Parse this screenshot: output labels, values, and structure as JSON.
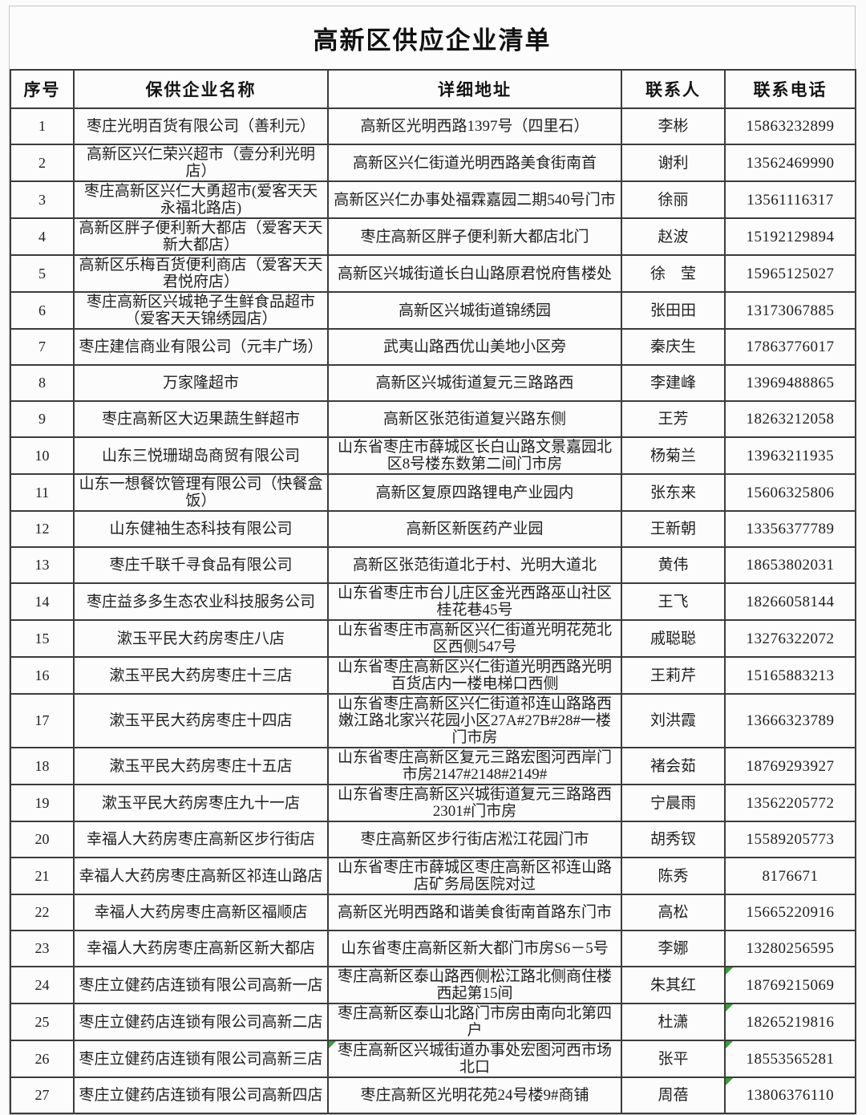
{
  "title": "高新区供应企业清单",
  "colors": {
    "marker_green": "#3a9d3a",
    "border_dark": "#3c3c3c"
  },
  "table": {
    "columns": [
      "序号",
      "保供企业名称",
      "详细地址",
      "联系人",
      "联系电话"
    ],
    "rows": [
      {
        "no": "1",
        "name": "枣庄光明百货有限公司（善利元）",
        "address": "高新区光明西路1397号（四里石）",
        "contact": "李彬",
        "phone": "15863232899"
      },
      {
        "no": "2",
        "name": "高新区兴仁荣兴超市（壹分利光明店）",
        "address": "高新区兴仁街道光明西路美食街南首",
        "contact": "谢利",
        "phone": "13562469990"
      },
      {
        "no": "3",
        "name": "枣庄高新区兴仁大勇超市(爱客天天永福北路店)",
        "address": "高新区兴仁办事处福霖嘉园二期540号门市",
        "contact": "徐丽",
        "phone": "13561116317"
      },
      {
        "no": "4",
        "name": "高新区胖子便利新大都店（爱客天天新大都店）",
        "address": "枣庄高新区胖子便利新大都店北门",
        "contact": "赵波",
        "phone": "15192129894"
      },
      {
        "no": "5",
        "name": "高新区乐梅百货便利商店（爱客天天君悦府店）",
        "address": "高新区兴城街道长白山路原君悦府售楼处",
        "contact": "徐　莹",
        "phone": "15965125027"
      },
      {
        "no": "6",
        "name": "枣庄高新区兴城艳子生鲜食品超市（爱客天天锦绣园店）",
        "address": "高新区兴城街道锦绣园",
        "contact": "张田田",
        "phone": "13173067885"
      },
      {
        "no": "7",
        "name": "枣庄建信商业有限公司（元丰广场）",
        "address": "武夷山路西优山美地小区旁",
        "contact": "秦庆生",
        "phone": "17863776017"
      },
      {
        "no": "8",
        "name": "万家隆超市",
        "address": "高新区兴城街道复元三路路西",
        "contact": "李建峰",
        "phone": "13969488865"
      },
      {
        "no": "9",
        "name": "枣庄高新区大迈果蔬生鲜超市",
        "address": "高新区张范街道复兴路东侧",
        "contact": "王芳",
        "phone": "18263212058"
      },
      {
        "no": "10",
        "name": "山东三悦珊瑚岛商贸有限公司",
        "address": "山东省枣庄市薛城区长白山路文景嘉园北区8号楼东数第二间门市房",
        "contact": "杨菊兰",
        "phone": "13963211935"
      },
      {
        "no": "11",
        "name": "山东一想餐饮管理有限公司（快餐盒饭）",
        "address": "高新区复原四路锂电产业园内",
        "contact": "张东来",
        "phone": "15606325806"
      },
      {
        "no": "12",
        "name": "山东健袖生态科技有限公司",
        "address": "高新区新医药产业园",
        "contact": "王新朝",
        "phone": "13356377789"
      },
      {
        "no": "13",
        "name": "枣庄千联千寻食品有限公司",
        "address": "高新区张范街道北于村、光明大道北",
        "contact": "黄伟",
        "phone": "18653802031"
      },
      {
        "no": "14",
        "name": "枣庄益多多生态农业科技服务公司",
        "address": "山东省枣庄市台儿庄区金光西路巫山社区桂花巷45号",
        "contact": "王飞",
        "phone": "18266058144"
      },
      {
        "no": "15",
        "name": "漱玉平民大药房枣庄八店",
        "address": "山东省枣庄市高新区兴仁街道光明花苑北区西侧547号",
        "contact": "戚聪聪",
        "phone": "13276322072"
      },
      {
        "no": "16",
        "name": "漱玉平民大药房枣庄十三店",
        "address": "山东省枣庄高新区兴仁街道光明西路光明百货店内一楼电梯口西侧",
        "contact": "王莉芹",
        "phone": "15165883213"
      },
      {
        "no": "17",
        "name": "漱玉平民大药房枣庄十四店",
        "address": "山东省枣庄高新区兴仁街道祁连山路路西嫩江路北家兴花园小区27A#27B#28#一楼门市房",
        "contact": "刘洪霞",
        "phone": "13666323789"
      },
      {
        "no": "18",
        "name": "漱玉平民大药房枣庄十五店",
        "address": "山东省枣庄高新区复元三路宏图河西岸门市房2147#2148#2149#",
        "contact": "褚会茹",
        "phone": "18769293927"
      },
      {
        "no": "19",
        "name": "漱玉平民大药房枣庄九十一店",
        "address": "山东省枣庄高新区兴城街道复元三路路西2301#门市房",
        "contact": "宁晨雨",
        "phone": "13562205772"
      },
      {
        "no": "20",
        "name": "幸福人大药房枣庄高新区步行街店",
        "address": "枣庄高新区步行街店淞江花园门市",
        "contact": "胡秀钗",
        "phone": "15589205773"
      },
      {
        "no": "21",
        "name": "幸福人大药房枣庄高新区祁连山路店",
        "address": "山东省枣庄市薛城区枣庄高新区祁连山路店矿务局医院对过",
        "contact": "陈秀",
        "phone": "8176671"
      },
      {
        "no": "22",
        "name": "幸福人大药房枣庄高新区福顺店",
        "address": "高新区光明西路和谐美食街南首路东门市",
        "contact": "高松",
        "phone": "15665220916"
      },
      {
        "no": "23",
        "name": "幸福人大药房枣庄高新区新大都店",
        "address": "山东省枣庄高新区新大都门市房S6－5号",
        "contact": "李娜",
        "phone": "13280256595"
      },
      {
        "no": "24",
        "name": "枣庄立健药店连锁有限公司高新一店",
        "address": "枣庄高新区泰山路西侧松江路北侧商住楼西起第15间",
        "contact": "朱其红",
        "phone": "18769215069",
        "phone_marker": true
      },
      {
        "no": "25",
        "name": "枣庄立健药店连锁有限公司高新二店",
        "address": "枣庄高新区泰山北路门市房由南向北第四户",
        "contact": "杜潇",
        "phone": "18265219816",
        "phone_marker": true
      },
      {
        "no": "26",
        "name": "枣庄立健药店连锁有限公司高新三店",
        "address": "枣庄高新区兴城街道办事处宏图河西市场北口",
        "contact": "张平",
        "phone": "18553565281",
        "phone_marker": true,
        "address_marker": true
      },
      {
        "no": "27",
        "name": "枣庄立健药店连锁有限公司高新四店",
        "address": "枣庄高新区光明花苑24号楼9#商铺",
        "contact": "周蓓",
        "phone": "13806376110",
        "phone_marker": true
      }
    ]
  }
}
